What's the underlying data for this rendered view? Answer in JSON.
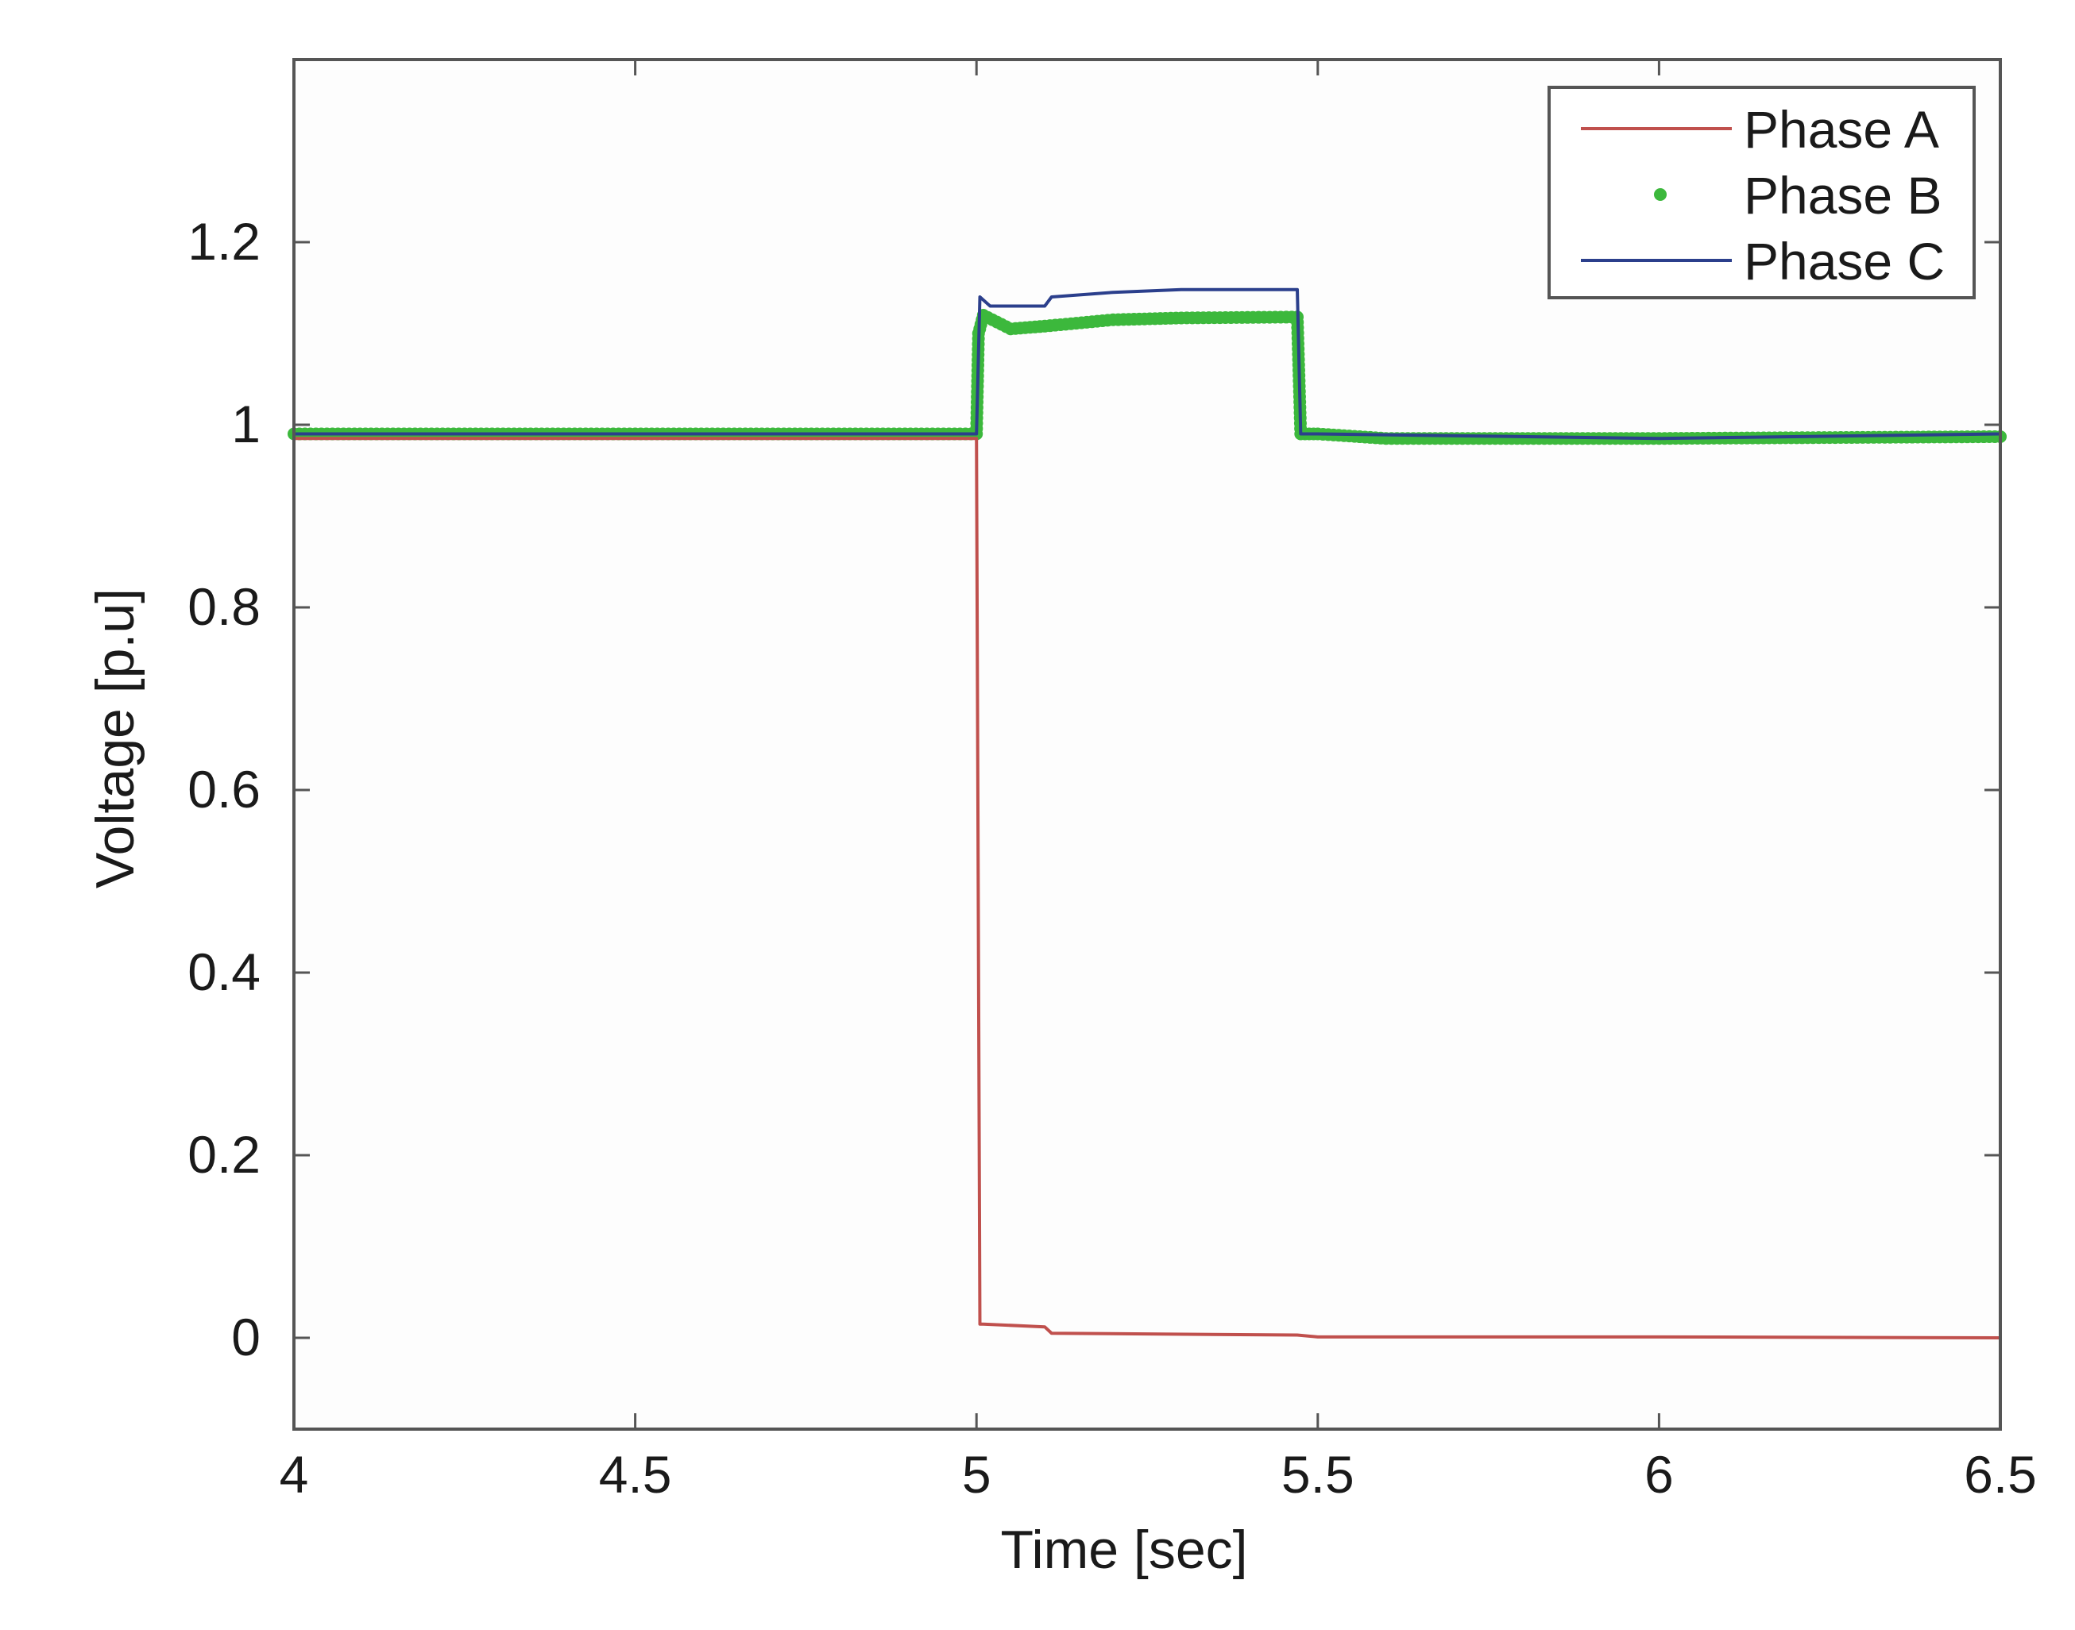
{
  "chart_data": {
    "type": "line",
    "title": "",
    "xlabel": "Time [sec]",
    "ylabel": "Voltage [p.u]",
    "xlim": [
      4,
      6.5
    ],
    "ylim": [
      -0.1,
      1.4
    ],
    "xticks": [
      4,
      4.5,
      5,
      5.5,
      6,
      6.5
    ],
    "xtick_labels": [
      "4",
      "4.5",
      "5",
      "5.5",
      "6",
      "6.5"
    ],
    "yticks": [
      0,
      0.2,
      0.4,
      0.6,
      0.8,
      1,
      1.2
    ],
    "ytick_labels": [
      "0",
      "0.2",
      "0.4",
      "0.6",
      "0.8",
      "1",
      "1.2"
    ],
    "grid": false,
    "legend_position": "top-right",
    "series": [
      {
        "name": "Phase A",
        "color": "#c0504d",
        "style": "line",
        "x": [
          4.0,
          5.0,
          5.005,
          5.01,
          5.1,
          5.11,
          5.47,
          5.5,
          6.0,
          6.5
        ],
        "y": [
          0.985,
          0.985,
          0.015,
          0.015,
          0.012,
          0.005,
          0.003,
          0.001,
          0.001,
          0.0
        ]
      },
      {
        "name": "Phase B",
        "color": "#3cb83c",
        "style": "dots",
        "x": [
          4.0,
          4.5,
          5.0,
          5.003,
          5.01,
          5.05,
          5.1,
          5.2,
          5.3,
          5.47,
          5.475,
          5.5,
          5.6,
          6.0,
          6.5
        ],
        "y": [
          0.99,
          0.99,
          0.99,
          1.1,
          1.12,
          1.105,
          1.108,
          1.115,
          1.117,
          1.118,
          0.99,
          0.99,
          0.985,
          0.985,
          0.987
        ]
      },
      {
        "name": "Phase C",
        "color": "#2b3f8c",
        "style": "line",
        "x": [
          4.0,
          5.0,
          5.005,
          5.02,
          5.1,
          5.11,
          5.2,
          5.3,
          5.47,
          5.475,
          5.5,
          6.0,
          6.5
        ],
        "y": [
          0.99,
          0.99,
          1.14,
          1.13,
          1.13,
          1.14,
          1.145,
          1.148,
          1.148,
          0.99,
          0.99,
          0.985,
          0.99
        ]
      }
    ]
  }
}
